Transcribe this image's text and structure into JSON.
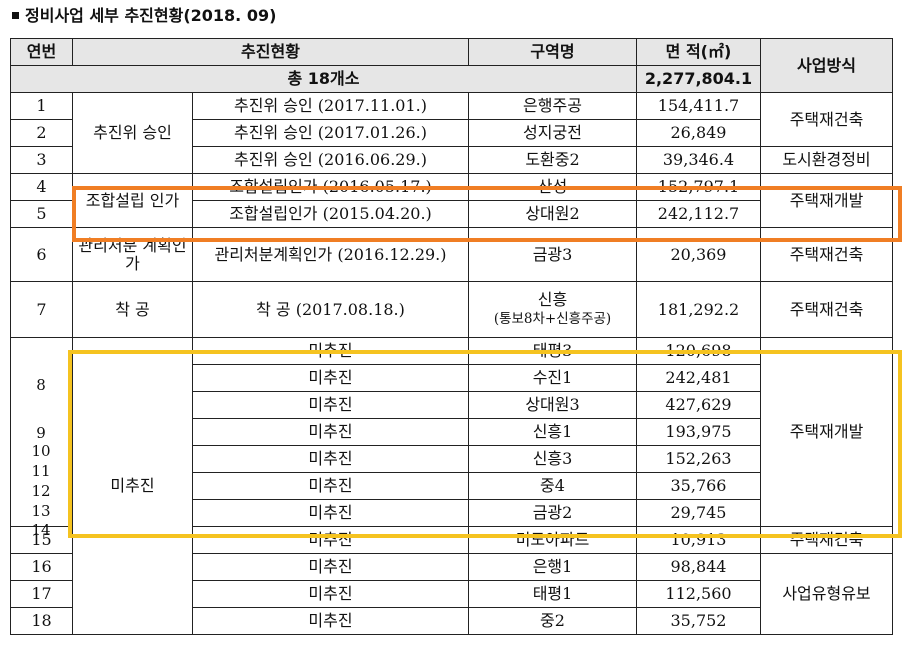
{
  "title": "정비사업 세부 추진현황(2018. 09)",
  "headers": {
    "no": "연번",
    "status": "추진현황",
    "zone": "구역명",
    "area": "면 적(㎡)",
    "method": "사업방식"
  },
  "total": {
    "label": "총 18개소",
    "area": "2,277,804.1"
  },
  "groups": {
    "committee": "추진위 승인",
    "union": "조합설립 인가",
    "mgmt": "관리처분 계획인가",
    "construction": "착 공",
    "none": "미추진"
  },
  "rows": [
    {
      "no": "1",
      "status": "추진위 승인 (2017.11.01.)",
      "zone": "은행주공",
      "area": "154,411.7"
    },
    {
      "no": "2",
      "status": "추진위 승인 (2017.01.26.)",
      "zone": "성지궁전",
      "area": "26,849"
    },
    {
      "no": "3",
      "status": "추진위 승인 (2016.06.29.)",
      "zone": "도환중2",
      "area": "39,346.4"
    },
    {
      "no": "4",
      "status": "조합설립인가 (2016.05.17.)",
      "zone": "산성",
      "area": "152,797.1"
    },
    {
      "no": "5",
      "status": "조합설립인가 (2015.04.20.)",
      "zone": "상대원2",
      "area": "242,112.7"
    },
    {
      "no": "6",
      "status": "관리처분계획인가 (2016.12.29.)",
      "zone": "금광3",
      "area": "20,369"
    },
    {
      "no": "7",
      "status": "착 공 (2017.08.18.)",
      "zone_line1": "신흥",
      "zone_line2": "(통보8차+신흥주공)",
      "area": "181,292.2"
    },
    {
      "no": "8",
      "status": "미추진",
      "zone": "태평3",
      "area": "120,698"
    },
    {
      "no": "",
      "status": "미추진",
      "zone": "수진1",
      "area": "242,481"
    },
    {
      "no": "",
      "status": "미추진",
      "zone": "상대원3",
      "area": "427,629"
    },
    {
      "no": "9",
      "status": "미추진",
      "zone": "신흥1",
      "area": "193,975"
    },
    {
      "no": "10",
      "status": "미추진",
      "zone": "신흥3",
      "area": "152,263"
    },
    {
      "no": "11",
      "status": "미추진",
      "zone": "중4",
      "area": "35,766"
    },
    {
      "no": "12",
      "status": "미추진",
      "zone": "금광2",
      "area": "29,745"
    },
    {
      "no": "13",
      "status": "",
      "zone": "",
      "area": ""
    },
    {
      "no": "14",
      "status": "",
      "zone": "",
      "area": ""
    },
    {
      "no": "15",
      "status": "미추진",
      "zone": "미도아파트",
      "area": "10,913"
    },
    {
      "no": "16",
      "status": "미추진",
      "zone": "은행1",
      "area": "98,844"
    },
    {
      "no": "17",
      "status": "미추진",
      "zone": "태평1",
      "area": "112,560"
    },
    {
      "no": "18",
      "status": "미추진",
      "zone": "중2",
      "area": "35,752"
    }
  ],
  "methods": {
    "rebuild": "주택재건축",
    "env": "도시환경정비",
    "redevelop": "주택재개발",
    "hold": "사업유형유보"
  },
  "colors": {
    "orange_highlight": "#f07e24",
    "yellow_highlight": "#f5c320",
    "header_bg": "#e6e6e6"
  }
}
